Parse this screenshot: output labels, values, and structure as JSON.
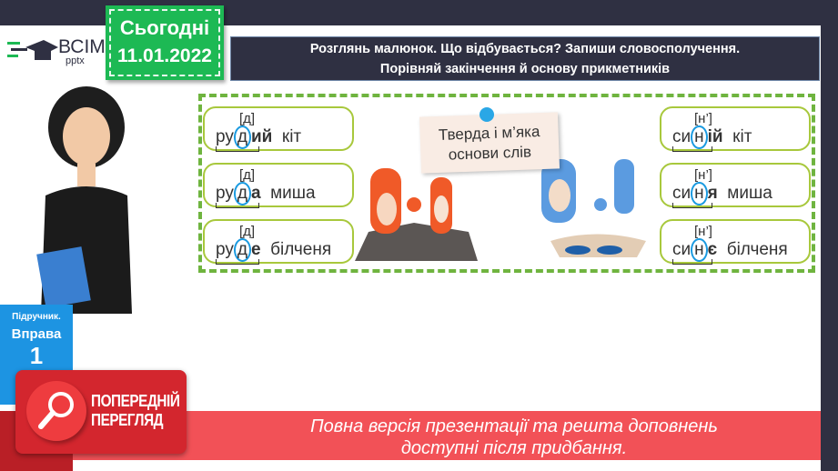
{
  "logo": {
    "brand": "ВСІМ",
    "sub": "pptx"
  },
  "date_badge": {
    "label": "Сьогодні",
    "date": "11.01.2022"
  },
  "title": {
    "line1": "Розглянь малюнок. Що відбувається? Запиши словосполучення.",
    "line2": "Порівняй закінчення й основу прикметників"
  },
  "note": {
    "line1": "Тверда і м’яка",
    "line2": "основи слів"
  },
  "left_cards": [
    {
      "phoneme": "[д]",
      "stem": "ру",
      "root_letter": "д",
      "ending": "ий",
      "noun": "кіт"
    },
    {
      "phoneme": "[д]",
      "stem": "ру",
      "root_letter": "д",
      "ending": "а",
      "noun": "миша"
    },
    {
      "phoneme": "[д]",
      "stem": "ру",
      "root_letter": "д",
      "ending": "е",
      "noun": "білченя"
    }
  ],
  "right_cards": [
    {
      "phoneme": "[н’]",
      "stem": "си",
      "root_letter": "н",
      "ending": "ій",
      "noun": "кіт"
    },
    {
      "phoneme": "[н’]",
      "stem": "си",
      "root_letter": "н",
      "ending": "я",
      "noun": "миша"
    },
    {
      "phoneme": "[н’]",
      "stem": "си",
      "root_letter": "н",
      "ending": "є",
      "noun": "білченя"
    }
  ],
  "exercise": {
    "label": "Підручник.",
    "title": "Вправа",
    "number": "1"
  },
  "preview_badge": {
    "line1": "ПОПЕРЕДНІЙ",
    "line2": "ПЕРЕГЛЯД"
  },
  "banner": {
    "line1": "Повна версія презентації та решта доповнень",
    "line2": "доступні після придбання."
  },
  "colors": {
    "accent_green": "#1db954",
    "navy": "#2f3042",
    "red": "#f25157",
    "blue": "#1d94e2"
  }
}
